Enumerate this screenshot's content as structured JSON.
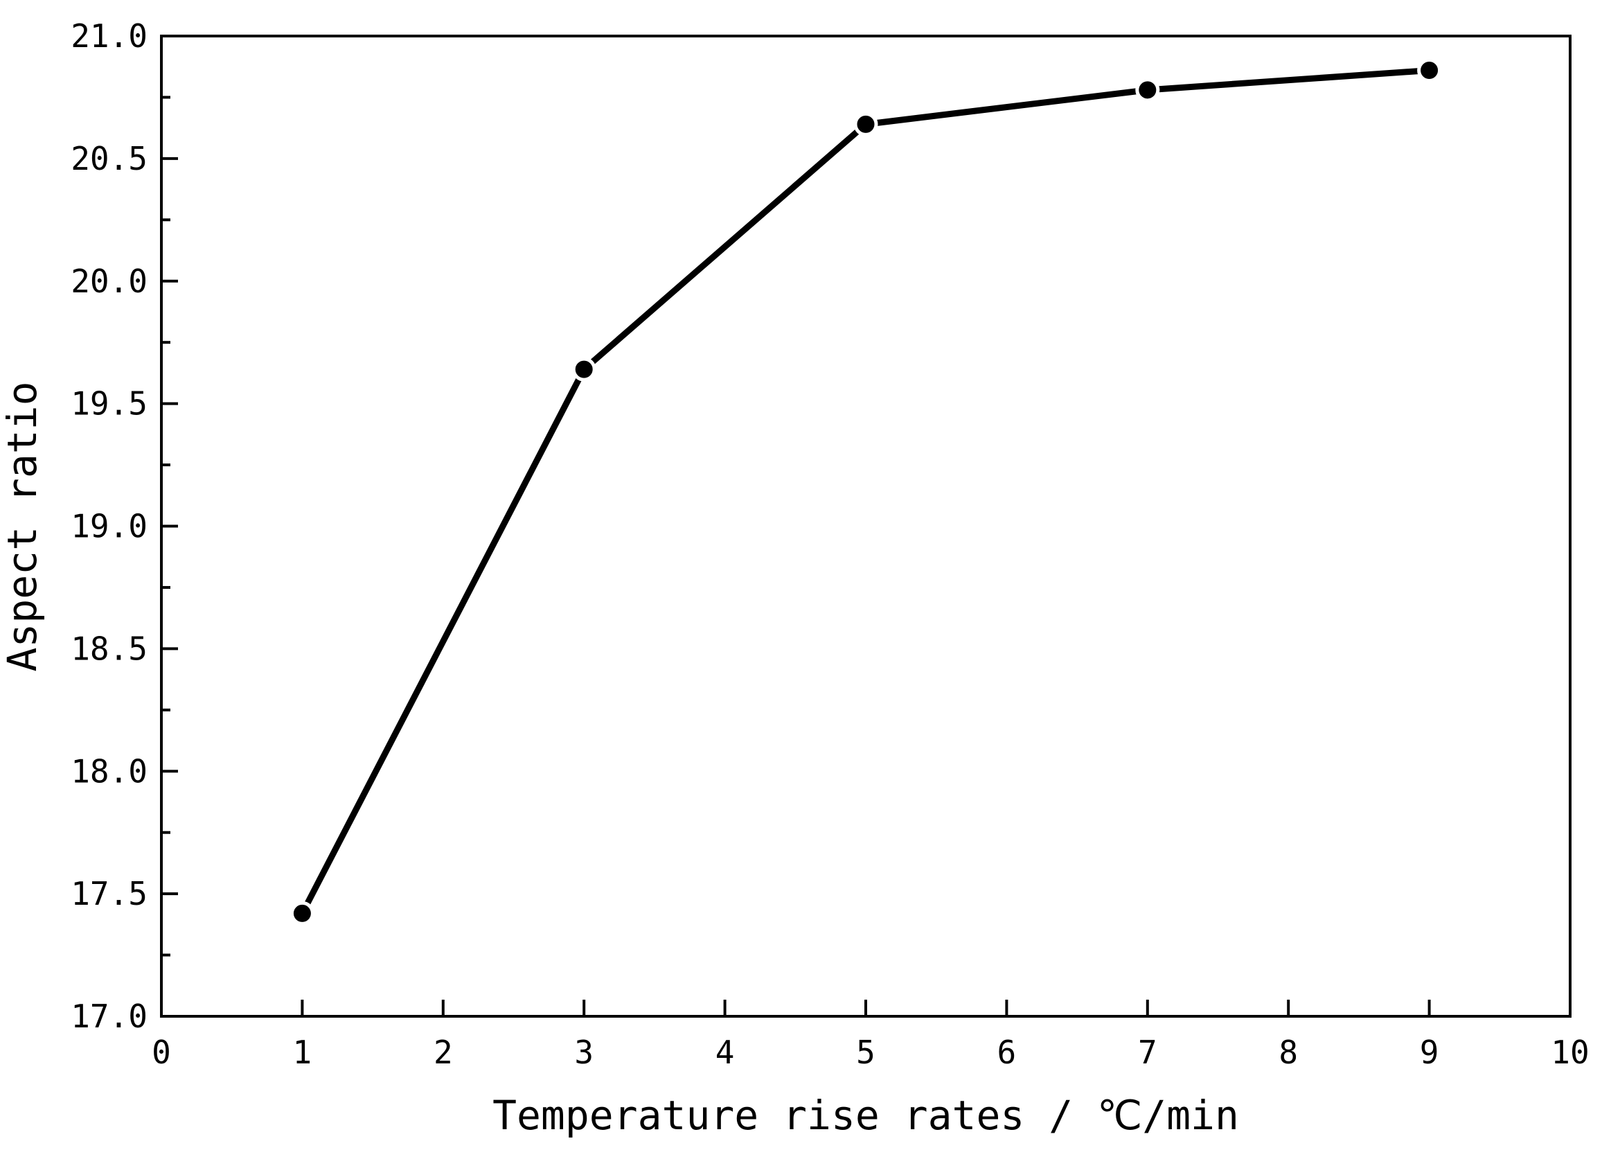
{
  "chart_data": {
    "type": "line",
    "title": "",
    "xlabel": "Temperature rise rates / ℃/min",
    "ylabel": "Aspect ratio",
    "xlim": [
      0,
      10
    ],
    "ylim": [
      17.0,
      21.0
    ],
    "x_ticks": [
      0,
      1,
      2,
      3,
      4,
      5,
      6,
      7,
      8,
      9,
      10
    ],
    "x_tick_labels": [
      "0",
      "1",
      "2",
      "3",
      "4",
      "5",
      "6",
      "7",
      "8",
      "9",
      "10"
    ],
    "y_ticks": [
      17.0,
      17.5,
      18.0,
      18.5,
      19.0,
      19.5,
      20.0,
      20.5,
      21.0
    ],
    "y_tick_labels": [
      "17.0",
      "17.5",
      "18.0",
      "18.5",
      "19.0",
      "19.5",
      "20.0",
      "20.5",
      "21.0"
    ],
    "grid": false,
    "legend": "none",
    "series": [
      {
        "x": [
          1,
          3,
          5,
          7,
          9
        ],
        "y": [
          17.42,
          19.64,
          20.64,
          20.78,
          20.86
        ],
        "color": "#000000",
        "marker": "circle"
      }
    ]
  }
}
